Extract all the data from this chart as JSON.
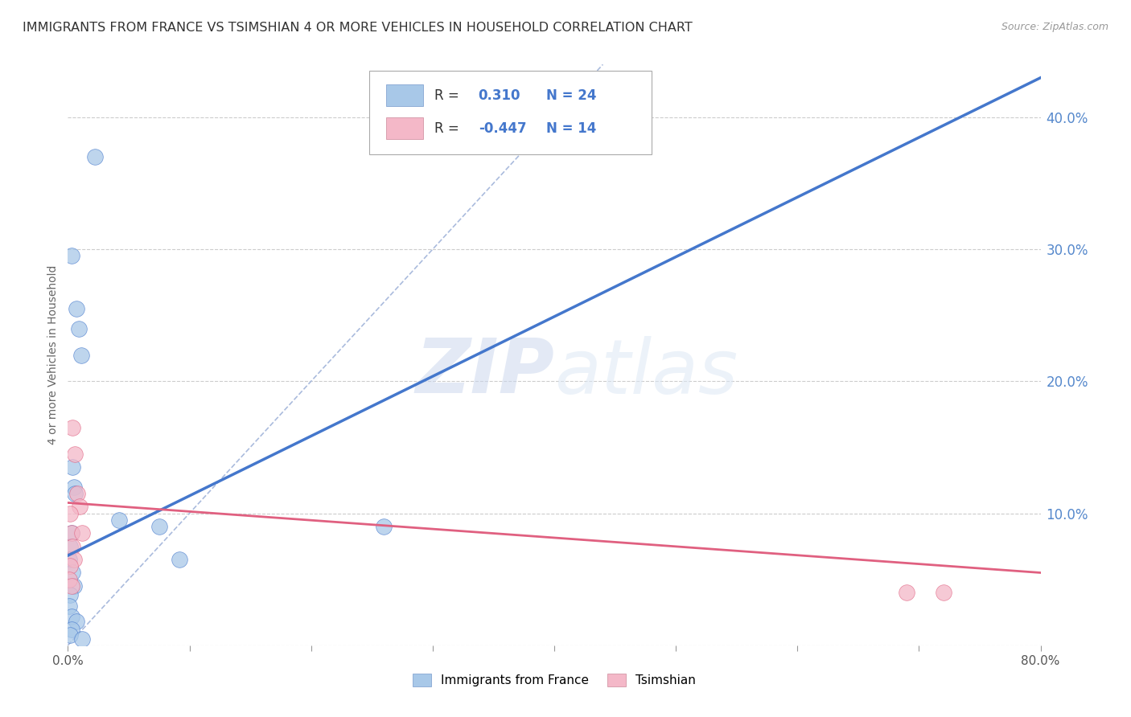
{
  "title": "IMMIGRANTS FROM FRANCE VS TSIMSHIAN 4 OR MORE VEHICLES IN HOUSEHOLD CORRELATION CHART",
  "source": "Source: ZipAtlas.com",
  "ylabel": "4 or more Vehicles in Household",
  "xlim": [
    0.0,
    0.8
  ],
  "ylim": [
    0.0,
    0.44
  ],
  "xticks": [
    0.0,
    0.1,
    0.2,
    0.3,
    0.4,
    0.5,
    0.6,
    0.7,
    0.8
  ],
  "yticks": [
    0.0,
    0.1,
    0.2,
    0.3,
    0.4
  ],
  "blue_scatter_x": [
    0.022,
    0.003,
    0.007,
    0.009,
    0.011,
    0.004,
    0.005,
    0.006,
    0.003,
    0.002,
    0.001,
    0.004,
    0.005,
    0.002,
    0.001,
    0.003,
    0.007,
    0.003,
    0.002,
    0.012,
    0.092,
    0.075,
    0.26,
    0.042
  ],
  "blue_scatter_y": [
    0.37,
    0.295,
    0.255,
    0.24,
    0.22,
    0.135,
    0.12,
    0.115,
    0.085,
    0.075,
    0.065,
    0.055,
    0.045,
    0.038,
    0.03,
    0.022,
    0.018,
    0.012,
    0.008,
    0.005,
    0.065,
    0.09,
    0.09,
    0.095
  ],
  "pink_scatter_x": [
    0.004,
    0.006,
    0.008,
    0.01,
    0.002,
    0.003,
    0.004,
    0.005,
    0.002,
    0.001,
    0.003,
    0.69,
    0.72,
    0.012
  ],
  "pink_scatter_y": [
    0.165,
    0.145,
    0.115,
    0.105,
    0.1,
    0.085,
    0.075,
    0.065,
    0.06,
    0.05,
    0.045,
    0.04,
    0.04,
    0.085
  ],
  "blue_line_x": [
    0.0,
    0.8
  ],
  "blue_line_y": [
    0.068,
    0.43
  ],
  "pink_line_x": [
    0.0,
    0.8
  ],
  "pink_line_y": [
    0.108,
    0.055
  ],
  "diag_line_x": [
    0.0,
    0.44
  ],
  "diag_line_y": [
    0.0,
    0.44
  ],
  "blue_color": "#a8c8e8",
  "pink_color": "#f4b8c8",
  "blue_line_color": "#4477cc",
  "pink_line_color": "#e06080",
  "diag_line_color": "#aabbdd",
  "legend_text_color": "#333333",
  "legend_value_color": "#4477cc",
  "watermark_zip": "ZIP",
  "watermark_atlas": "atlas",
  "background_color": "#ffffff",
  "axis_right_color": "#5588cc",
  "title_fontsize": 11.5,
  "tick_fontsize": 11
}
